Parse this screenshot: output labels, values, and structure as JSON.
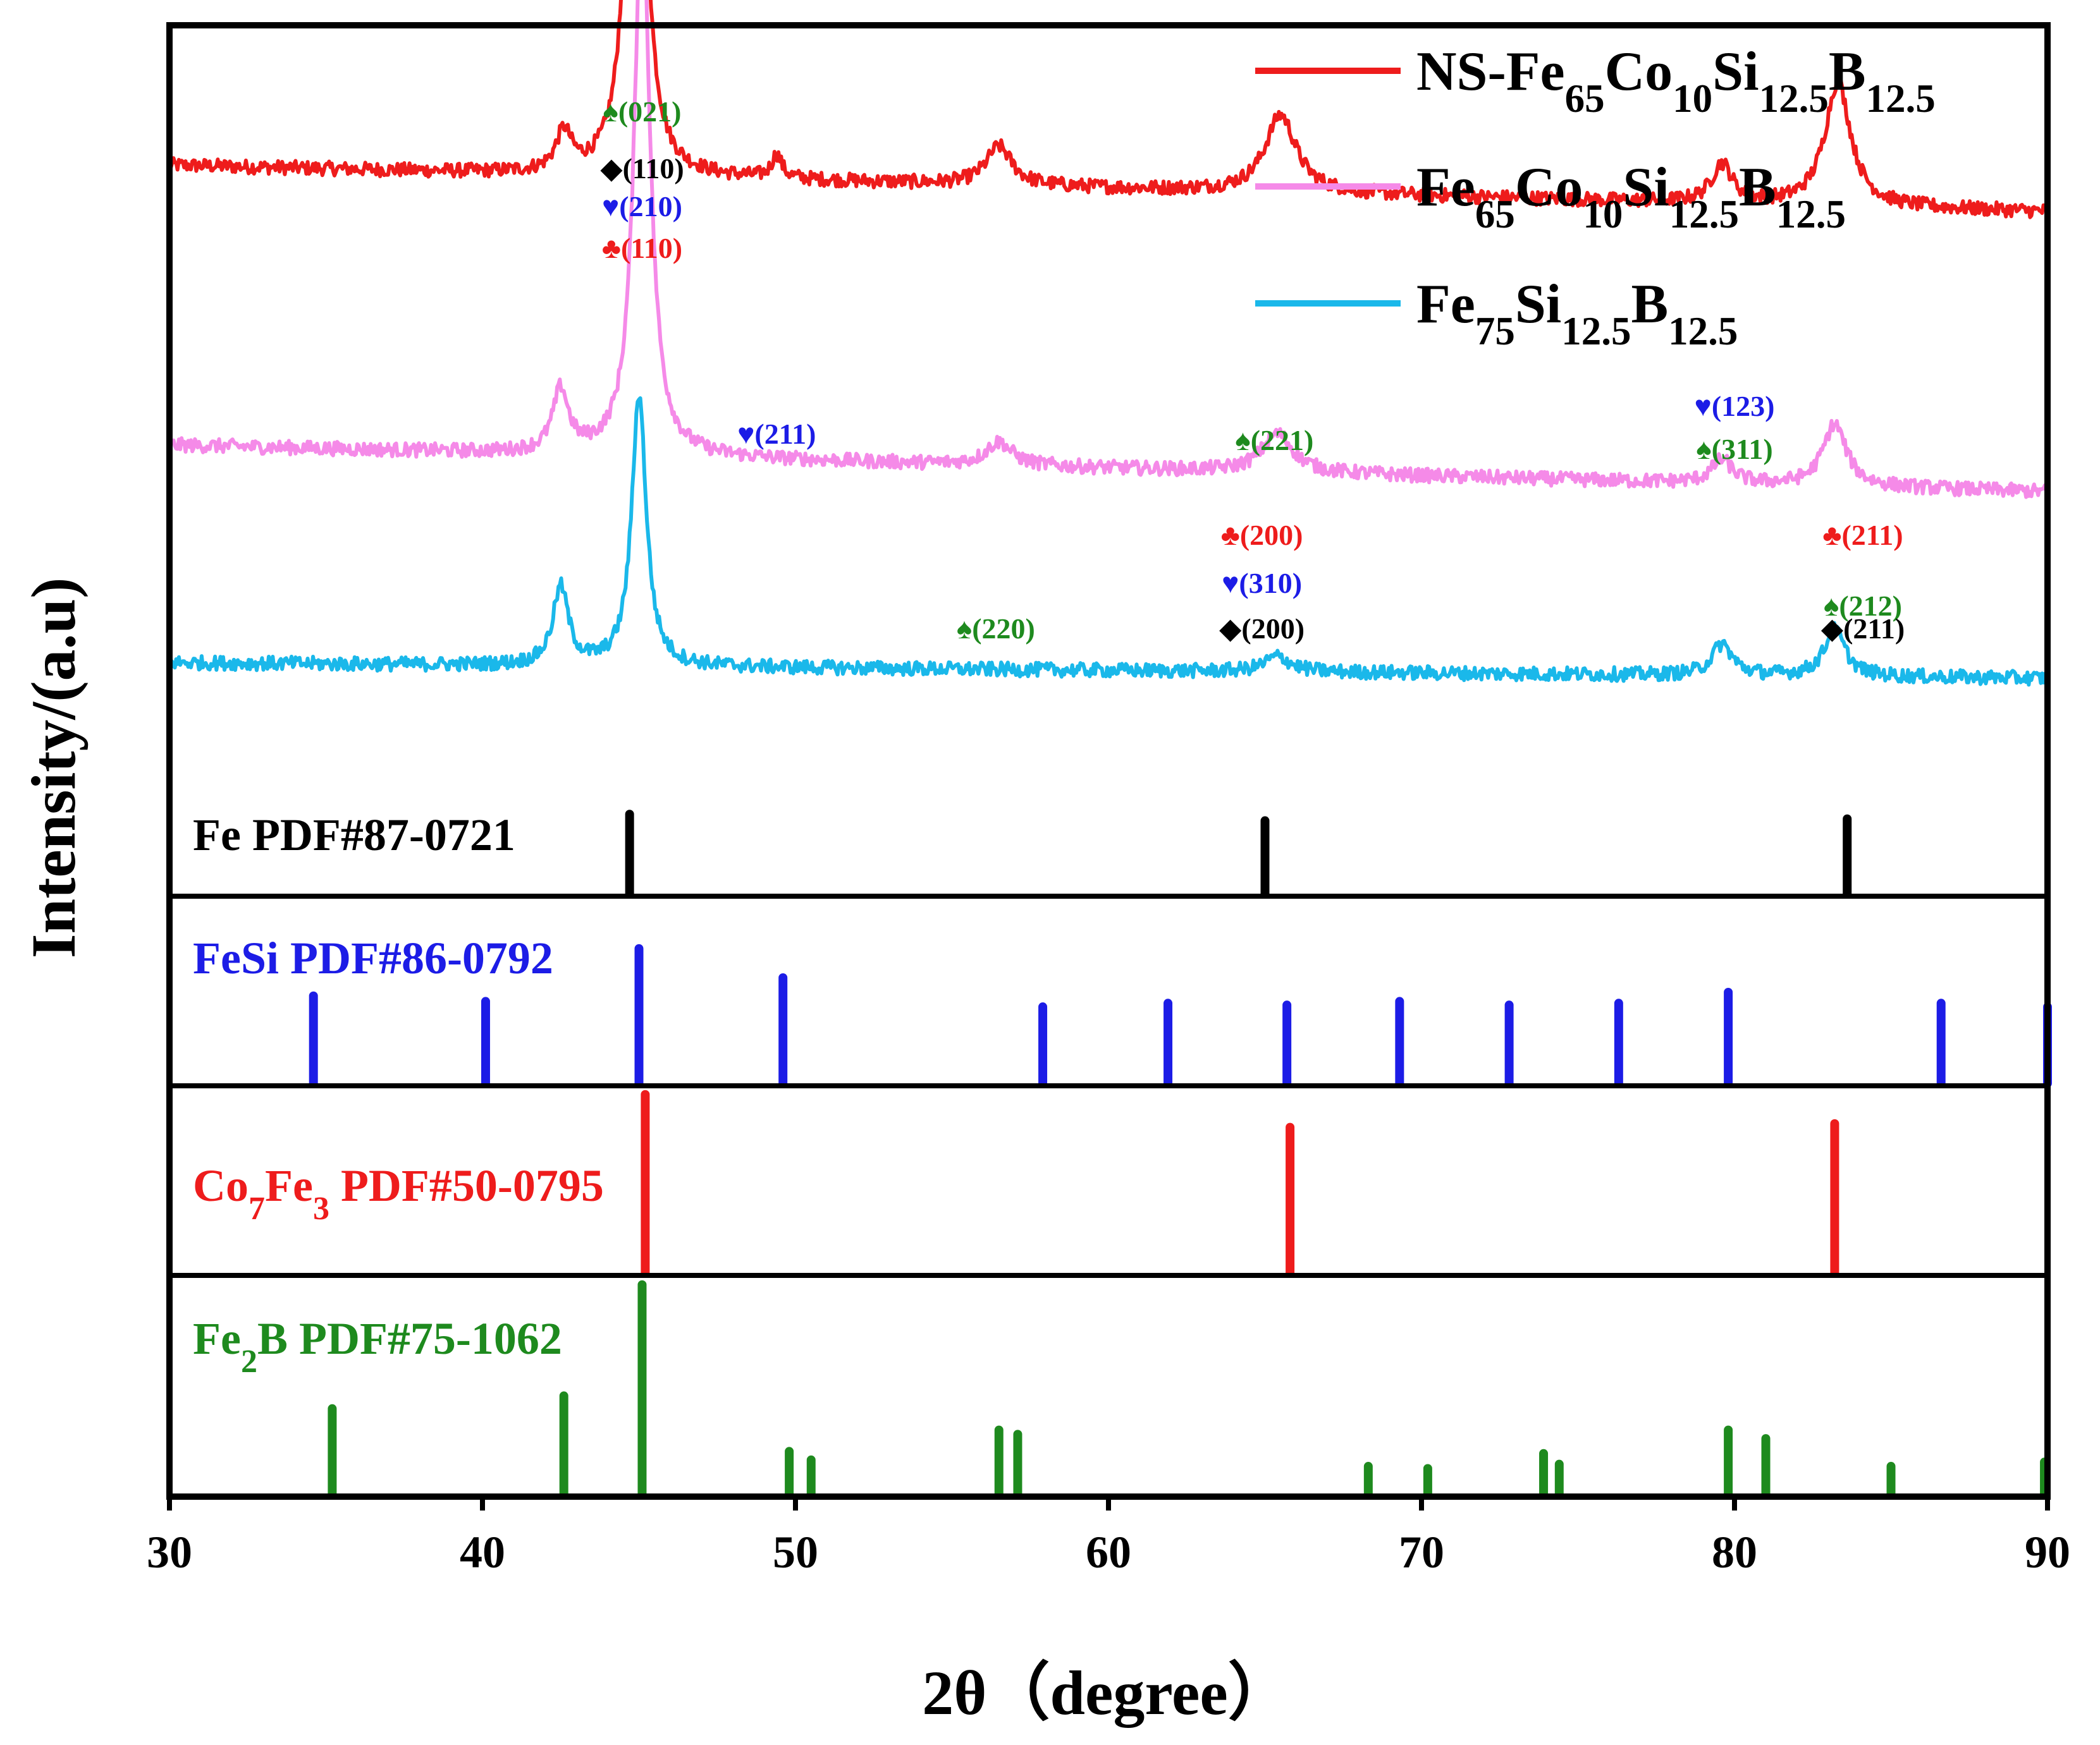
{
  "chart_data": {
    "type": "line",
    "title": "",
    "xlabel": "2θ（degree）",
    "ylabel": "Intensity/(a.u)",
    "xlim": [
      30,
      90
    ],
    "x_ticks": [
      "30",
      "40",
      "50",
      "60",
      "70",
      "80",
      "90"
    ],
    "legend_position": "top-right",
    "legend": [
      {
        "name": "NS-Fe65Co10Si12.5B12.5",
        "parts": [
          [
            "NS-Fe",
            ""
          ],
          [
            "65",
            "sub"
          ],
          [
            "Co",
            ""
          ],
          [
            "10",
            "sub"
          ],
          [
            "Si",
            ""
          ],
          [
            "12.5",
            "sub"
          ],
          [
            "B",
            ""
          ],
          [
            "12.5",
            "sub"
          ]
        ],
        "color": "#ee1c1c"
      },
      {
        "name": "Fe65Co10Si12.5B12.5",
        "parts": [
          [
            "Fe",
            ""
          ],
          [
            "65",
            "sub"
          ],
          [
            "Co",
            ""
          ],
          [
            "10",
            "sub"
          ],
          [
            "Si",
            ""
          ],
          [
            "12.5",
            "sub"
          ],
          [
            "B",
            ""
          ],
          [
            "12.5",
            "sub"
          ]
        ],
        "color": "#f58ae8"
      },
      {
        "name": "Fe75Si12.5B12.5",
        "parts": [
          [
            "Fe",
            ""
          ],
          [
            "75",
            "sub"
          ],
          [
            "Si",
            ""
          ],
          [
            "12.5",
            "sub"
          ],
          [
            "B",
            ""
          ],
          [
            "12.5",
            "sub"
          ]
        ],
        "color": "#1ab8ea"
      }
    ],
    "series": [
      {
        "name": "NS-Fe65Co10Si12.5B12.5",
        "color": "#ee1c1c",
        "baseline": 0.82,
        "slope": -0.06,
        "peaks": [
          [
            42.6,
            0.05,
            0.3
          ],
          [
            44.9,
            0.9,
            0.28
          ],
          [
            49.4,
            0.03,
            0.2
          ],
          [
            56.5,
            0.05,
            0.5
          ],
          [
            65.5,
            0.1,
            0.6
          ],
          [
            79.6,
            0.05,
            0.4
          ],
          [
            83.3,
            0.16,
            0.5
          ]
        ]
      },
      {
        "name": "Fe65Co10Si12.5B12.5",
        "color": "#f58ae8",
        "baseline": 0.46,
        "slope": -0.06,
        "peaks": [
          [
            42.5,
            0.08,
            0.3
          ],
          [
            45.1,
            0.72,
            0.3
          ],
          [
            56.5,
            0.03,
            0.5
          ],
          [
            65.4,
            0.05,
            0.6
          ],
          [
            79.6,
            0.03,
            0.4
          ],
          [
            83.2,
            0.08,
            0.45
          ]
        ]
      },
      {
        "name": "Fe75Si12.5B12.5",
        "color": "#1ab8ea",
        "baseline": 0.18,
        "slope": -0.02,
        "peaks": [
          [
            42.5,
            0.1,
            0.3
          ],
          [
            45.0,
            0.35,
            0.28
          ],
          [
            65.4,
            0.02,
            0.5
          ],
          [
            79.6,
            0.04,
            0.4
          ],
          [
            83.2,
            0.06,
            0.4
          ]
        ]
      }
    ],
    "reference_panels": [
      {
        "label": "Fe PDF#87-0721",
        "label_parts": [
          [
            "Fe PDF#87-0721",
            ""
          ]
        ],
        "color": "#000000",
        "lines": [
          [
            44.7,
            0.85
          ],
          [
            65.0,
            0.78
          ],
          [
            83.6,
            0.8
          ]
        ]
      },
      {
        "label": "FeSi PDF#86-0792",
        "label_parts": [
          [
            "FeSi PDF#86-0792",
            ""
          ]
        ],
        "color": "#1c1ce6",
        "lines": [
          [
            34.6,
            0.48
          ],
          [
            40.1,
            0.45
          ],
          [
            45.0,
            0.74
          ],
          [
            49.6,
            0.58
          ],
          [
            57.9,
            0.42
          ],
          [
            61.9,
            0.44
          ],
          [
            65.7,
            0.43
          ],
          [
            69.3,
            0.45
          ],
          [
            72.8,
            0.43
          ],
          [
            76.3,
            0.44
          ],
          [
            79.8,
            0.5
          ],
          [
            86.6,
            0.44
          ],
          [
            90.0,
            0.42
          ]
        ]
      },
      {
        "label": "Co7Fe3 PDF#50-0795",
        "label_parts": [
          [
            "Co",
            ""
          ],
          [
            "7",
            "sub"
          ],
          [
            "Fe",
            ""
          ],
          [
            "3",
            "sub"
          ],
          [
            " PDF#50-0795",
            ""
          ]
        ],
        "color": "#ee1c1c",
        "lines": [
          [
            45.2,
            0.98
          ],
          [
            65.8,
            0.8
          ],
          [
            83.2,
            0.82
          ]
        ]
      },
      {
        "label": "Fe2B PDF#75-1062",
        "label_parts": [
          [
            "Fe",
            ""
          ],
          [
            "2",
            "sub"
          ],
          [
            "B PDF#75-1062",
            ""
          ]
        ],
        "color": "#1e8a1e",
        "lines": [
          [
            35.2,
            0.4
          ],
          [
            42.6,
            0.46
          ],
          [
            45.1,
            0.98
          ],
          [
            49.8,
            0.2
          ],
          [
            50.5,
            0.16
          ],
          [
            56.5,
            0.3
          ],
          [
            57.1,
            0.28
          ],
          [
            68.3,
            0.13
          ],
          [
            70.2,
            0.12
          ],
          [
            73.9,
            0.19
          ],
          [
            74.4,
            0.14
          ],
          [
            79.8,
            0.3
          ],
          [
            81.0,
            0.26
          ],
          [
            85.0,
            0.13
          ],
          [
            89.9,
            0.15
          ]
        ]
      }
    ],
    "peak_labels": [
      {
        "x": 45.1,
        "level": 0,
        "text": "♠(021)",
        "color": "#1e8a1e"
      },
      {
        "x": 45.1,
        "level": 1,
        "text": "◆(110)",
        "color": "#000000"
      },
      {
        "x": 45.1,
        "level": 2,
        "text": "♥(210)",
        "color": "#1c1ce6"
      },
      {
        "x": 45.1,
        "level": 3,
        "text": "♣(110)",
        "color": "#ee1c1c"
      },
      {
        "x": 49.4,
        "level": 4,
        "text": "♥(211)",
        "color": "#1c1ce6"
      },
      {
        "x": 65.3,
        "level": 5,
        "text": "♠(221)",
        "color": "#1e8a1e"
      },
      {
        "x": 80.0,
        "level": 6,
        "text": "♥(123)",
        "color": "#1c1ce6"
      },
      {
        "x": 80.0,
        "level": 7,
        "text": "♠(311)",
        "color": "#1e8a1e"
      },
      {
        "x": 64.9,
        "level": 8,
        "text": "♣(200)",
        "color": "#ee1c1c"
      },
      {
        "x": 64.9,
        "level": 9,
        "text": "♥(310)",
        "color": "#1c1ce6"
      },
      {
        "x": 64.9,
        "level": 10,
        "text": "◆(200)",
        "color": "#000000"
      },
      {
        "x": 56.4,
        "level": 10,
        "text": "♠(220)",
        "color": "#1e8a1e"
      },
      {
        "x": 84.1,
        "level": 8,
        "text": "♣(211)",
        "color": "#ee1c1c"
      },
      {
        "x": 84.1,
        "level": 9.5,
        "text": "♠(212)",
        "color": "#1e8a1e"
      },
      {
        "x": 84.1,
        "level": 11,
        "text": "◆(211)",
        "color": "#000000"
      }
    ]
  }
}
